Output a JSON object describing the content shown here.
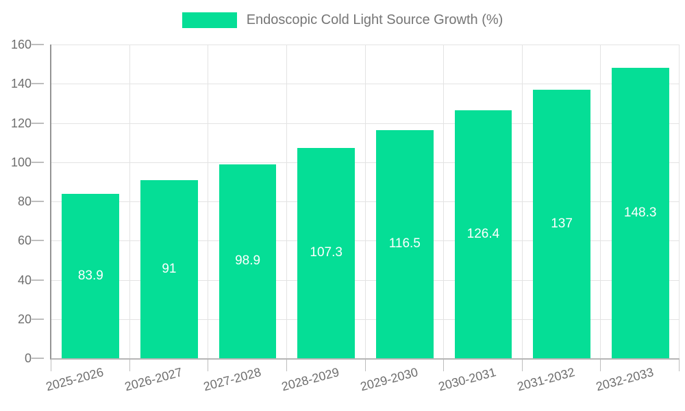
{
  "chart_data": {
    "type": "bar",
    "title": "Endoscopic Cold Light Source Growth (%)",
    "legend": [
      "Endoscopic Cold Light Source Growth (%)"
    ],
    "legend_position": "top",
    "categories": [
      "2025-2026",
      "2026-2027",
      "2027-2028",
      "2028-2029",
      "2029-2030",
      "2030-2031",
      "2031-2032",
      "2032-2033"
    ],
    "values": [
      83.9,
      91,
      98.9,
      107.3,
      116.5,
      126.4,
      137,
      148.3
    ],
    "xlabel": "",
    "ylabel": "",
    "ylim": [
      0,
      160
    ],
    "y_ticks": [
      0,
      20,
      40,
      60,
      80,
      100,
      120,
      140,
      160
    ],
    "grid": true,
    "colors": {
      "bar": "#05de96",
      "value_label": "#ffffff",
      "legend_text": "#757575",
      "axis_text": "#6e6e6e",
      "gridline": "#e3e3e3",
      "y_axis_line": "#949494",
      "x_axis_line": "#b5b5b5",
      "tick": "#bdbdbd",
      "background": "#ffffff"
    }
  }
}
